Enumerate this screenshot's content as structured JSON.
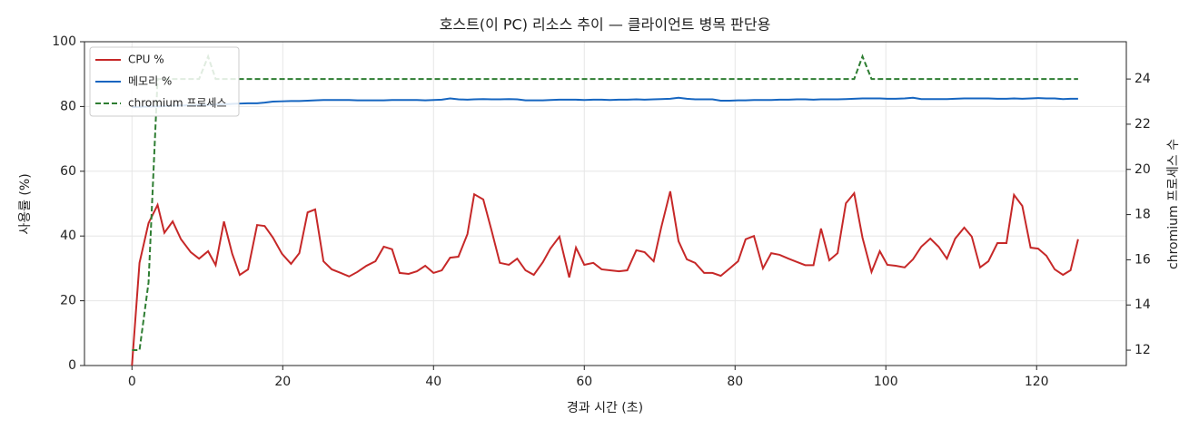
{
  "chart_data": {
    "type": "line",
    "title": "호스트(이 PC) 리소스 추이 — 클라이언트 병목 판단용",
    "xlabel": "경과 시간 (초)",
    "ylabel": "사용률 (%)",
    "y2label": "chromium 프로세스 수",
    "x": [
      0,
      1,
      2.2,
      3.4,
      4.3,
      5.4,
      6.5,
      7.8,
      8.9,
      10.1,
      11.1,
      12.2,
      13.3,
      14.3,
      15.4,
      16.6,
      17.6,
      18.7,
      19.9,
      21.1,
      22.2,
      23.3,
      24.3,
      25.4,
      26.5,
      27.7,
      28.8,
      29.9,
      31.1,
      32.3,
      33.4,
      34.5,
      35.5,
      36.7,
      37.8,
      38.9,
      40,
      41.1,
      42.2,
      43.3,
      44.5,
      45.4,
      46.6,
      47.7,
      48.8,
      50,
      51.1,
      52.2,
      53.3,
      54.5,
      55.5,
      56.7,
      58,
      58.9,
      60,
      61.2,
      62.3,
      63.4,
      64.6,
      65.7,
      66.9,
      68,
      69.2,
      70.2,
      71.4,
      72.5,
      73.6,
      74.7,
      75.9,
      77,
      78.1,
      79.3,
      80.4,
      81.4,
      82.5,
      83.7,
      84.8,
      85.9,
      87.1,
      88.2,
      89.3,
      90.4,
      91.4,
      92.5,
      93.6,
      94.7,
      95.8,
      96.9,
      98.1,
      99.2,
      100.2,
      101.3,
      102.5,
      103.6,
      104.7,
      105.9,
      107,
      108.1,
      109.2,
      110.4,
      111.4,
      112.5,
      113.6,
      114.8,
      116,
      117,
      118.1,
      119.2,
      120.2,
      121.3,
      122.4,
      123.5,
      124.5,
      125.5
    ],
    "series": [
      {
        "name": "CPU %",
        "color": "#c62828",
        "values": [
          0,
          31.7,
          44,
          49.6,
          41,
          44.5,
          39,
          35,
          33,
          35.3,
          31,
          44.5,
          34.5,
          28,
          29.7,
          43.4,
          43.1,
          39.5,
          34.5,
          31.4,
          34.7,
          47.3,
          48.2,
          32.2,
          29.7,
          28.6,
          27.5,
          28.9,
          30.8,
          32.2,
          36.7,
          35.9,
          28.6,
          28.3,
          29.1,
          30.8,
          28.6,
          29.4,
          33.3,
          33.6,
          40.6,
          52.9,
          51.3,
          41.7,
          31.7,
          31.1,
          33,
          29.4,
          28,
          31.9,
          36.1,
          39.8,
          27.2,
          36.4,
          31.1,
          31.7,
          29.7,
          29.4,
          29.1,
          29.4,
          35.6,
          35,
          32.2,
          42.6,
          53.8,
          38.4,
          32.8,
          31.7,
          28.6,
          28.6,
          27.7,
          30,
          32.2,
          39,
          40,
          30,
          34.7,
          34.2,
          33,
          32,
          31,
          31,
          42.3,
          32.5,
          34.7,
          50.1,
          53.2,
          39.5,
          28.9,
          35.3,
          31.1,
          30.8,
          30.3,
          32.8,
          36.7,
          39.2,
          36.7,
          33,
          39.2,
          42.6,
          39.8,
          30.3,
          32.2,
          37.8,
          37.8,
          52.7,
          49.3,
          36.4,
          36.1,
          33.9,
          29.7,
          28,
          29.4,
          39
        ]
      },
      {
        "name": "메모리 %",
        "color": "#1565c0",
        "values": [
          79.8,
          79.9,
          80,
          80,
          80.1,
          80.2,
          80.3,
          80.4,
          80.5,
          80.5,
          80.6,
          80.7,
          80.8,
          80.9,
          81,
          81,
          81.2,
          81.5,
          81.6,
          81.7,
          81.7,
          81.8,
          81.9,
          82,
          82,
          82,
          82,
          81.9,
          81.9,
          81.9,
          81.9,
          82,
          82,
          82,
          82,
          81.9,
          82,
          82.1,
          82.5,
          82.2,
          82.1,
          82.2,
          82.3,
          82.2,
          82.2,
          82.3,
          82.2,
          81.9,
          81.9,
          81.9,
          82,
          82.1,
          82.1,
          82.1,
          82,
          82.1,
          82.1,
          82,
          82.1,
          82.1,
          82.2,
          82.1,
          82.2,
          82.3,
          82.4,
          82.7,
          82.4,
          82.2,
          82.2,
          82.2,
          81.8,
          81.8,
          81.9,
          81.9,
          82,
          82,
          82,
          82.1,
          82.1,
          82.2,
          82.2,
          82.1,
          82.2,
          82.2,
          82.2,
          82.3,
          82.4,
          82.5,
          82.5,
          82.5,
          82.4,
          82.4,
          82.5,
          82.7,
          82.3,
          82.3,
          82.3,
          82.3,
          82.4,
          82.5,
          82.5,
          82.5,
          82.5,
          82.4,
          82.4,
          82.5,
          82.4,
          82.5,
          82.6,
          82.5,
          82.5,
          82.3,
          82.4,
          82.4
        ]
      },
      {
        "name": "chromium 프로세스",
        "color": "#2e7d32",
        "dashed": true,
        "axis": "y2",
        "values": [
          12,
          12,
          15,
          24,
          24,
          24,
          24,
          24,
          24,
          25,
          24,
          24,
          24,
          24,
          24,
          24,
          24,
          24,
          24,
          24,
          24,
          24,
          24,
          24,
          24,
          24,
          24,
          24,
          24,
          24,
          24,
          24,
          24,
          24,
          24,
          24,
          24,
          24,
          24,
          24,
          24,
          24,
          24,
          24,
          24,
          24,
          24,
          24,
          24,
          24,
          24,
          24,
          24,
          24,
          24,
          24,
          24,
          24,
          24,
          24,
          24,
          24,
          24,
          24,
          24,
          24,
          24,
          24,
          24,
          24,
          24,
          24,
          24,
          24,
          24,
          24,
          24,
          24,
          24,
          24,
          24,
          24,
          24,
          24,
          24,
          24,
          24,
          25,
          24,
          24,
          24,
          24,
          24,
          24,
          24,
          24,
          24,
          24,
          24,
          24,
          24,
          24,
          24,
          24,
          24,
          24,
          24,
          24,
          24,
          24,
          24,
          24,
          24,
          24
        ]
      }
    ],
    "xlim": [
      -6.3,
      131.9
    ],
    "xticks": [
      0,
      20,
      40,
      60,
      80,
      100,
      120
    ],
    "ylim": [
      0,
      100
    ],
    "yticks": [
      0,
      20,
      40,
      60,
      80,
      100
    ],
    "y2lim": [
      11.32,
      25.65
    ],
    "y2ticks": [
      12,
      14,
      16,
      18,
      20,
      22,
      24
    ],
    "grid": true,
    "legend": "upper left"
  }
}
